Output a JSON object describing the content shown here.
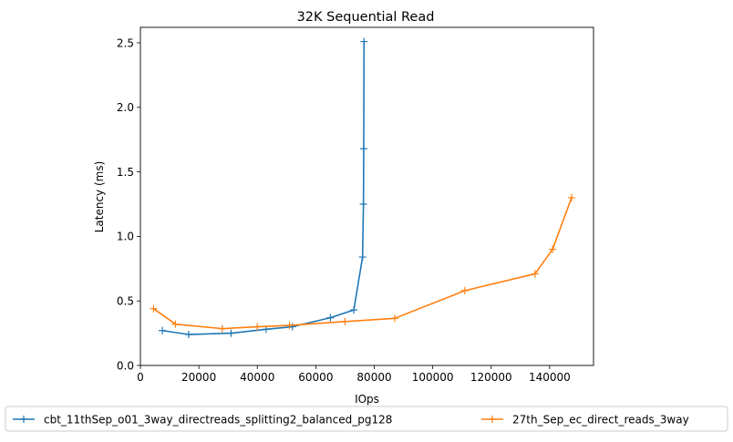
{
  "chart_data": {
    "type": "line",
    "title": "32K  Sequential Read",
    "xlabel": "IOps",
    "ylabel": "Latency (ms)",
    "xlim": [
      0,
      155000
    ],
    "ylim": [
      0,
      2.62
    ],
    "xticks": [
      0,
      20000,
      40000,
      60000,
      80000,
      100000,
      120000,
      140000
    ],
    "xtick_labels": [
      "0",
      "20000",
      "40000",
      "60000",
      "80000",
      "100000",
      "120000",
      "140000"
    ],
    "yticks": [
      0.0,
      0.5,
      1.0,
      1.5,
      2.0,
      2.5
    ],
    "ytick_labels": [
      "0.0",
      "0.5",
      "1.0",
      "1.5",
      "2.0",
      "2.5"
    ],
    "grid": false,
    "legend_position": "bottom-center",
    "series": [
      {
        "name": "cbt_11thSep_o01_3way_directreads_splitting2_balanced_pg128",
        "color": "#1f77b4",
        "marker": "plus",
        "x": [
          7500,
          16500,
          31000,
          43000,
          52000,
          65000,
          73000,
          76000,
          76300,
          76400,
          76500
        ],
        "y": [
          0.27,
          0.24,
          0.25,
          0.28,
          0.3,
          0.37,
          0.43,
          0.84,
          1.25,
          1.68,
          2.51
        ]
      },
      {
        "name": "27th_Sep_ec_direct_reads_3way",
        "color": "#ff7f0e",
        "marker": "plus",
        "x": [
          4500,
          12000,
          28000,
          40000,
          51000,
          70000,
          87000,
          111000,
          135000,
          141000,
          147500
        ],
        "y": [
          0.44,
          0.32,
          0.285,
          0.3,
          0.31,
          0.34,
          0.365,
          0.58,
          0.71,
          0.9,
          1.3
        ]
      }
    ]
  }
}
